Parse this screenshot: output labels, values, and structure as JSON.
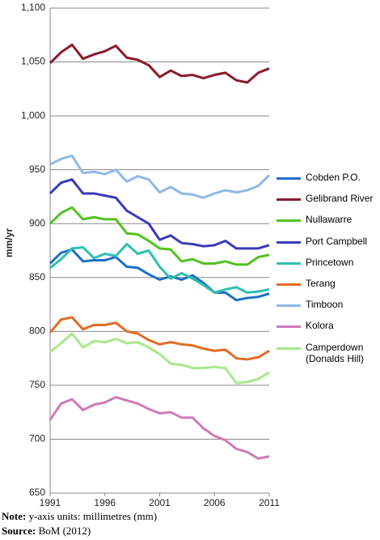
{
  "chart_data": {
    "type": "line",
    "y_label": "mm/yr",
    "x": [
      1991,
      1992,
      1993,
      1994,
      1995,
      1996,
      1997,
      1998,
      1999,
      2000,
      2001,
      2002,
      2003,
      2004,
      2005,
      2006,
      2007,
      2008,
      2009,
      2010,
      2011
    ],
    "xlim": [
      1991,
      2011
    ],
    "xticks": [
      1991,
      1996,
      2001,
      2006,
      2011
    ],
    "ylim": [
      650,
      1100
    ],
    "yticks": [
      650,
      700,
      750,
      800,
      850,
      900,
      950,
      {
        "value": 1000,
        "label": "1,000"
      },
      {
        "value": 1050,
        "label": "1,050"
      },
      {
        "value": 1100,
        "label": "1,100"
      }
    ],
    "grid": true,
    "series": [
      {
        "name": "Cobden P.O.",
        "color": "#1f6fc5",
        "values": [
          863,
          873,
          876,
          865,
          866,
          866,
          869,
          860,
          859,
          853,
          848,
          851,
          848,
          852,
          845,
          836,
          836,
          829,
          831,
          832,
          835
        ]
      },
      {
        "name": "Gelibrand River",
        "color": "#8b1a2b",
        "values": [
          1049,
          1059,
          1066,
          1053,
          1057,
          1060,
          1065,
          1054,
          1052,
          1047,
          1036,
          1042,
          1037,
          1038,
          1035,
          1038,
          1040,
          1033,
          1031,
          1040,
          1044
        ]
      },
      {
        "name": "Nullawarre",
        "color": "#52c21f",
        "values": [
          900,
          910,
          915,
          904,
          906,
          904,
          904,
          891,
          890,
          884,
          877,
          876,
          865,
          867,
          863,
          863,
          865,
          862,
          862,
          869,
          871
        ]
      },
      {
        "name": "Port Campbell",
        "color": "#3a3ab8",
        "values": [
          928,
          938,
          941,
          928,
          928,
          926,
          924,
          912,
          906,
          900,
          885,
          889,
          882,
          881,
          879,
          880,
          884,
          877,
          877,
          877,
          880
        ]
      },
      {
        "name": "Princetown",
        "color": "#2ebfb0",
        "values": [
          859,
          867,
          877,
          878,
          868,
          872,
          870,
          881,
          872,
          875,
          860,
          849,
          854,
          849,
          843,
          836,
          839,
          841,
          836,
          837,
          839
        ]
      },
      {
        "name": "Terang",
        "color": "#e26b25",
        "values": [
          799,
          811,
          813,
          802,
          806,
          806,
          808,
          800,
          798,
          792,
          788,
          790,
          788,
          787,
          784,
          782,
          783,
          775,
          774,
          776,
          782
        ]
      },
      {
        "name": "Timboon",
        "color": "#8fb8e8",
        "values": [
          955,
          960,
          963,
          947,
          948,
          946,
          950,
          939,
          944,
          941,
          929,
          934,
          928,
          927,
          924,
          928,
          931,
          929,
          931,
          935,
          945
        ]
      },
      {
        "name": "Kolora",
        "color": "#d07ab8",
        "values": [
          718,
          733,
          737,
          727,
          732,
          734,
          739,
          736,
          733,
          728,
          724,
          725,
          720,
          720,
          710,
          703,
          699,
          691,
          688,
          682,
          684
        ]
      },
      {
        "name": "Camperdown (Donalds Hill)",
        "color": "#a8e88a",
        "values": [
          781,
          789,
          798,
          785,
          791,
          790,
          793,
          789,
          790,
          785,
          779,
          770,
          769,
          766,
          766,
          767,
          766,
          752,
          753,
          756,
          762
        ]
      }
    ]
  },
  "note": {
    "label": "Note:",
    "text": "y-axis units: millimetres (mm)"
  },
  "source": {
    "label": "Source:",
    "text": "BoM (2012)"
  }
}
